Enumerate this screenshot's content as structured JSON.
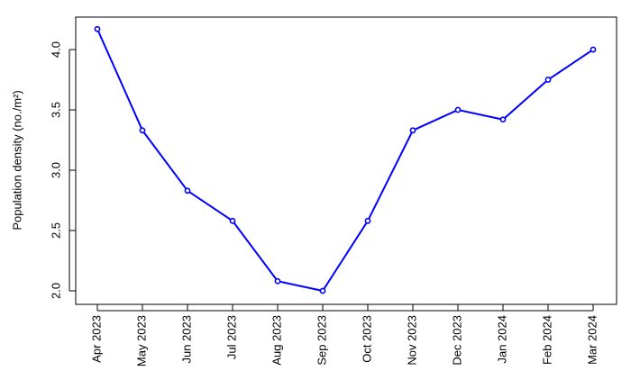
{
  "chart_data": {
    "type": "line",
    "y_label": "Population density (no./m²)",
    "categories": [
      "Apr 2023",
      "May 2023",
      "Jun 2023",
      "Jul 2023",
      "Aug 2023",
      "Sep 2023",
      "Oct 2023",
      "Nov 2023",
      "Dec 2023",
      "Jan 2024",
      "Feb 2024",
      "Mar 2024"
    ],
    "series": [
      {
        "color": "#0000ff",
        "values": [
          4.17,
          3.33,
          2.83,
          2.58,
          2.08,
          2.0,
          2.58,
          3.33,
          3.5,
          3.42,
          3.75,
          4.0
        ]
      }
    ],
    "ylim": [
      1.888,
      4.269
    ],
    "yticks": [
      {
        "value": 2,
        "label": "2.0"
      },
      {
        "value": 2.5,
        "label": "2.5"
      },
      {
        "value": 3,
        "label": "3.0"
      },
      {
        "value": 3.5,
        "label": "3.5"
      },
      {
        "value": 4,
        "label": "4.0"
      }
    ],
    "grid": false
  }
}
